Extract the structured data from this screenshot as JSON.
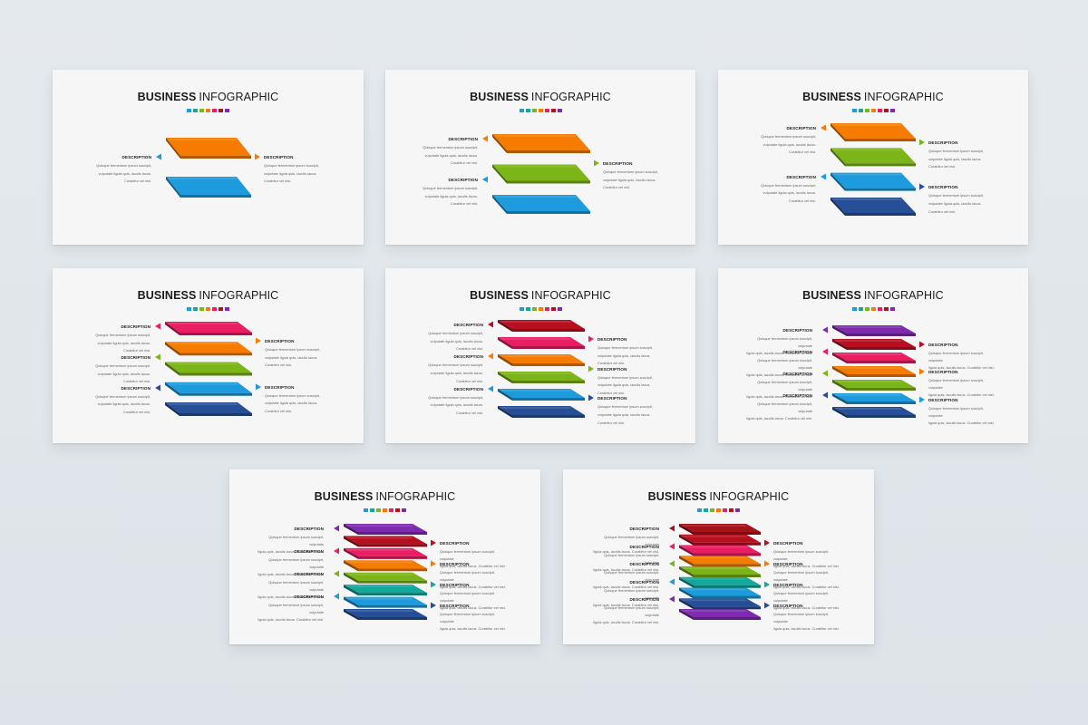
{
  "colors": {
    "purple": "#7e2bb0",
    "darkred": "#b70f20",
    "pink": "#e91e63",
    "orange": "#f57c00",
    "green": "#7cb518",
    "teal": "#12a89b",
    "blue": "#1d9bdc",
    "navy": "#274f97",
    "deepred": "#a5121a"
  },
  "swatch_colors": [
    "#1d9bdc",
    "#12a89b",
    "#7cb518",
    "#f57c00",
    "#e91e63",
    "#b70f20",
    "#7e2bb0"
  ],
  "title_bold": "BUSINESS",
  "title_rest": "INFOGRAPHIC",
  "desc_heading": "DESCRIPTION",
  "desc_lines": [
    "Quisque fermentum ipsum suscipit,",
    "vulputate ligula quis, iaculis lacus.",
    "Curabitur vel nisi."
  ],
  "desc_lines_wide": [
    "Quisque fermentum ipsum suscipit, vulputate",
    "ligula quis, iaculis lacus. Curabitur vel nisi."
  ],
  "slides": [
    {
      "layers": [
        "orange",
        "blue"
      ],
      "left": [
        {
          "color": "blue"
        }
      ],
      "right": [
        {
          "color": "orange"
        }
      ],
      "wide": false
    },
    {
      "layers": [
        "orange",
        "green",
        "blue"
      ],
      "left": [
        {
          "color": "orange"
        },
        {
          "color": "blue"
        }
      ],
      "right": [
        {
          "color": "green"
        }
      ],
      "wide": false
    },
    {
      "layers": [
        "orange",
        "green",
        "blue",
        "navy"
      ],
      "left": [
        {
          "color": "orange"
        },
        {
          "color": "blue"
        }
      ],
      "right": [
        {
          "color": "green"
        },
        {
          "color": "navy"
        }
      ],
      "wide": false
    },
    {
      "layers": [
        "pink",
        "orange",
        "green",
        "blue",
        "navy"
      ],
      "left": [
        {
          "color": "pink"
        },
        {
          "color": "green"
        },
        {
          "color": "navy"
        }
      ],
      "right": [
        {
          "color": "orange"
        },
        {
          "color": "blue"
        }
      ],
      "wide": false
    },
    {
      "layers": [
        "darkred",
        "pink",
        "orange",
        "green",
        "blue",
        "navy"
      ],
      "left": [
        {
          "color": "darkred"
        },
        {
          "color": "orange"
        },
        {
          "color": "blue"
        }
      ],
      "right": [
        {
          "color": "pink"
        },
        {
          "color": "green"
        },
        {
          "color": "navy"
        }
      ],
      "wide": false
    },
    {
      "layers": [
        "purple",
        "darkred",
        "pink",
        "orange",
        "green",
        "blue",
        "navy"
      ],
      "left": [
        {
          "color": "purple"
        },
        {
          "color": "pink"
        },
        {
          "color": "green"
        },
        {
          "color": "navy"
        }
      ],
      "right": [
        {
          "color": "darkred"
        },
        {
          "color": "orange"
        },
        {
          "color": "blue"
        }
      ],
      "wide": true
    },
    {
      "layers": [
        "purple",
        "darkred",
        "pink",
        "orange",
        "green",
        "teal",
        "blue",
        "navy"
      ],
      "left": [
        {
          "color": "purple"
        },
        {
          "color": "pink"
        },
        {
          "color": "green"
        },
        {
          "color": "blue"
        }
      ],
      "right": [
        {
          "color": "darkred"
        },
        {
          "color": "orange"
        },
        {
          "color": "teal"
        },
        {
          "color": "navy"
        }
      ],
      "wide": true
    },
    {
      "layers": [
        "deepred",
        "darkred",
        "pink",
        "orange",
        "green",
        "teal",
        "blue",
        "navy",
        "purple"
      ],
      "left": [
        {
          "color": "deepred"
        },
        {
          "color": "pink"
        },
        {
          "color": "green"
        },
        {
          "color": "blue"
        },
        {
          "color": "purple"
        }
      ],
      "right": [
        {
          "color": "darkred"
        },
        {
          "color": "orange"
        },
        {
          "color": "teal"
        },
        {
          "color": "navy"
        }
      ],
      "wide": true
    }
  ]
}
